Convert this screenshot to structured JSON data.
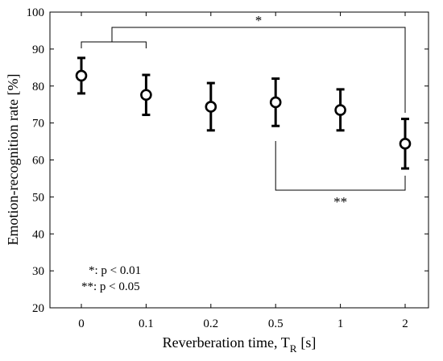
{
  "chart_data": {
    "type": "scatter",
    "title": "",
    "xlabel": "Reverberation time, T",
    "xlabel_subscript": "R",
    "xlabel_unit": "[s]",
    "ylabel": "Emotion-recognition rate [%]",
    "ylim": [
      20,
      100
    ],
    "yticks": [
      "20",
      "30",
      "40",
      "50",
      "60",
      "70",
      "80",
      "90",
      "100"
    ],
    "categories": [
      "0",
      "0.1",
      "0.2",
      "0.5",
      "1",
      "2"
    ],
    "values": [
      82.8,
      77.6,
      74.4,
      75.6,
      73.5,
      64.4
    ],
    "error_low": [
      78.0,
      72.2,
      68.0,
      69.2,
      68.0,
      57.7
    ],
    "error_high": [
      87.6,
      83.0,
      80.8,
      82.0,
      79.1,
      71.1
    ],
    "grid": false,
    "significance": [
      {
        "label": "*",
        "from": "0–0.1 group",
        "to": "2"
      },
      {
        "label": "**",
        "from": "0.5",
        "to": "2"
      }
    ],
    "notes": [
      "*: p < 0.01",
      "**: p < 0.05"
    ]
  }
}
